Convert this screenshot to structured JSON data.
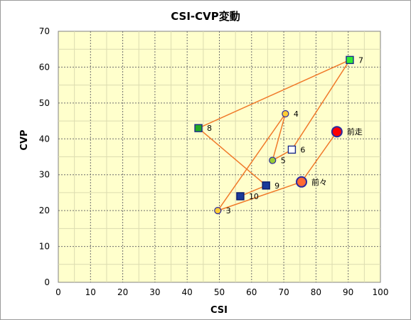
{
  "chart_data": {
    "type": "scatter",
    "title": "CSI-CVP変動",
    "xlabel": "CSI",
    "ylabel": "CVP",
    "xlim": [
      0,
      100
    ],
    "ylim": [
      0,
      70
    ],
    "xticks": [
      0,
      10,
      20,
      30,
      40,
      50,
      60,
      70,
      80,
      90,
      100
    ],
    "yticks": [
      0,
      10,
      20,
      30,
      40,
      50,
      60,
      70
    ],
    "minor_grid_x": [
      5,
      15,
      25,
      35,
      45,
      55,
      65,
      75,
      85,
      95
    ],
    "minor_grid_y": [
      5,
      15,
      25,
      35,
      45,
      55,
      65
    ],
    "grid": true,
    "line_color": "#f07a2a",
    "plot_background": "#ffffcc",
    "path_order": [
      "前走",
      "前々",
      "3",
      "4",
      "5",
      "6",
      "7",
      "8",
      "9",
      "10"
    ],
    "points": [
      {
        "label": "前走",
        "x": 86.5,
        "y": 42,
        "marker": "circle",
        "fill": "#ff0000",
        "stroke": "#2a2aa0",
        "size": "large"
      },
      {
        "label": "前々",
        "x": 75.5,
        "y": 28,
        "marker": "circle",
        "fill": "#ff6a33",
        "stroke": "#2a2aa0",
        "size": "large"
      },
      {
        "label": "3",
        "x": 49.5,
        "y": 20,
        "marker": "circle",
        "fill": "#ffcc33",
        "stroke": "#2a2aa0",
        "size": "small"
      },
      {
        "label": "4",
        "x": 70.5,
        "y": 47,
        "marker": "circle",
        "fill": "#ffcc33",
        "stroke": "#2a2aa0",
        "size": "small"
      },
      {
        "label": "5",
        "x": 66.5,
        "y": 34,
        "marker": "circle",
        "fill": "#99cc33",
        "stroke": "#2a2aa0",
        "size": "small"
      },
      {
        "label": "6",
        "x": 72.5,
        "y": 37,
        "marker": "square",
        "fill": "#ffffff",
        "stroke": "#1a2a8a",
        "size": "small"
      },
      {
        "label": "7",
        "x": 90.5,
        "y": 62,
        "marker": "square",
        "fill": "#33ee33",
        "stroke": "#1a2a8a",
        "size": "small"
      },
      {
        "label": "8",
        "x": 43.5,
        "y": 43,
        "marker": "square",
        "fill": "#22aa22",
        "stroke": "#1a2a8a",
        "size": "small"
      },
      {
        "label": "9",
        "x": 64.5,
        "y": 27,
        "marker": "square",
        "fill": "#1a3a9a",
        "stroke": "#0a1a6a",
        "size": "small"
      },
      {
        "label": "10",
        "x": 56.5,
        "y": 24,
        "marker": "square",
        "fill": "#1a3a9a",
        "stroke": "#0a1a6a",
        "size": "small"
      }
    ]
  }
}
